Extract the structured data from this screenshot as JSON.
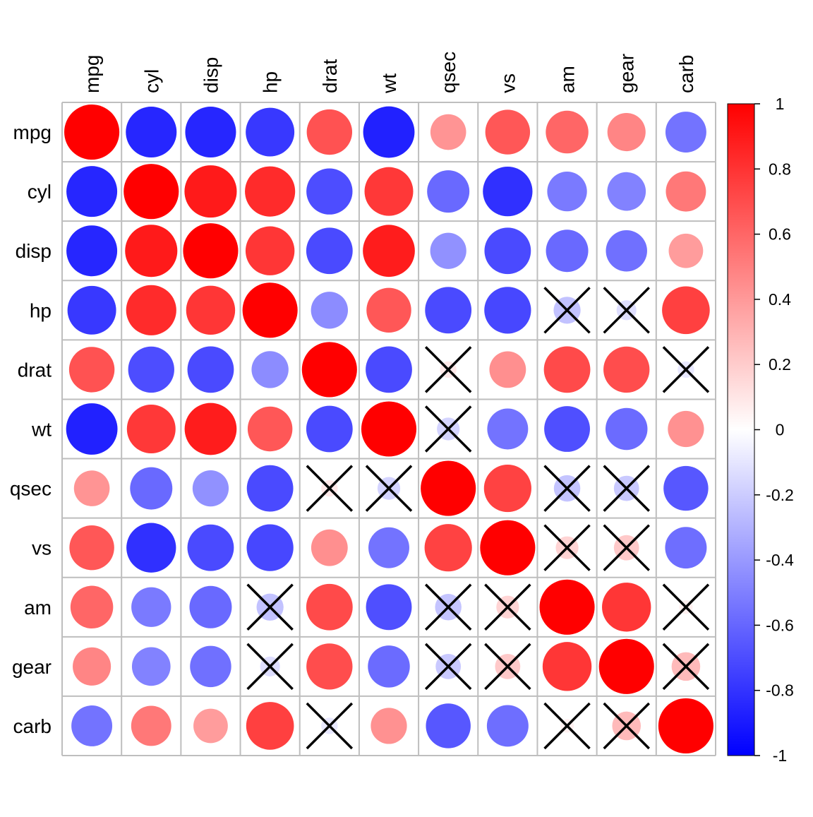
{
  "chart_data": {
    "type": "heatmap",
    "title": "",
    "variables": [
      "mpg",
      "cyl",
      "disp",
      "hp",
      "drat",
      "wt",
      "qsec",
      "vs",
      "am",
      "gear",
      "carb"
    ],
    "values": [
      [
        1.0,
        -0.85,
        -0.85,
        -0.78,
        0.68,
        -0.87,
        0.42,
        0.66,
        0.6,
        0.48,
        -0.55
      ],
      [
        -0.85,
        1.0,
        0.9,
        0.83,
        -0.7,
        0.78,
        -0.59,
        -0.81,
        -0.52,
        -0.49,
        0.53
      ],
      [
        -0.85,
        0.9,
        1.0,
        0.79,
        -0.71,
        0.89,
        -0.43,
        -0.71,
        -0.59,
        -0.56,
        0.39
      ],
      [
        -0.78,
        0.83,
        0.79,
        1.0,
        -0.45,
        0.66,
        -0.71,
        -0.72,
        -0.24,
        -0.13,
        0.75
      ],
      [
        0.68,
        -0.7,
        -0.71,
        -0.45,
        1.0,
        -0.71,
        0.09,
        0.44,
        0.71,
        0.7,
        -0.09
      ],
      [
        -0.87,
        0.78,
        0.89,
        0.66,
        -0.71,
        1.0,
        -0.17,
        -0.55,
        -0.69,
        -0.58,
        0.43
      ],
      [
        0.42,
        -0.59,
        -0.43,
        -0.71,
        0.09,
        -0.17,
        1.0,
        0.74,
        -0.23,
        -0.21,
        -0.66
      ],
      [
        0.66,
        -0.81,
        -0.71,
        -0.72,
        0.44,
        -0.55,
        0.74,
        1.0,
        0.17,
        0.21,
        -0.57
      ],
      [
        0.6,
        -0.52,
        -0.59,
        -0.24,
        0.71,
        -0.69,
        -0.23,
        0.17,
        1.0,
        0.79,
        0.06
      ],
      [
        0.48,
        -0.49,
        -0.56,
        -0.13,
        0.7,
        -0.58,
        -0.21,
        0.21,
        0.79,
        1.0,
        0.27
      ],
      [
        -0.55,
        0.53,
        0.39,
        0.75,
        -0.09,
        0.43,
        -0.66,
        -0.57,
        0.06,
        0.27,
        1.0
      ]
    ],
    "insignificant": [
      [
        false,
        false,
        false,
        false,
        false,
        false,
        false,
        false,
        false,
        false,
        false
      ],
      [
        false,
        false,
        false,
        false,
        false,
        false,
        false,
        false,
        false,
        false,
        false
      ],
      [
        false,
        false,
        false,
        false,
        false,
        false,
        false,
        false,
        false,
        false,
        false
      ],
      [
        false,
        false,
        false,
        false,
        false,
        false,
        false,
        false,
        true,
        true,
        false
      ],
      [
        false,
        false,
        false,
        false,
        false,
        false,
        true,
        false,
        false,
        false,
        true
      ],
      [
        false,
        false,
        false,
        false,
        false,
        false,
        true,
        false,
        false,
        false,
        false
      ],
      [
        false,
        false,
        false,
        false,
        true,
        true,
        false,
        false,
        true,
        true,
        false
      ],
      [
        false,
        false,
        false,
        false,
        false,
        false,
        false,
        false,
        true,
        true,
        false
      ],
      [
        false,
        false,
        false,
        true,
        false,
        false,
        true,
        true,
        false,
        false,
        true
      ],
      [
        false,
        false,
        false,
        true,
        false,
        false,
        true,
        true,
        false,
        false,
        true
      ],
      [
        false,
        false,
        false,
        false,
        true,
        false,
        false,
        false,
        true,
        true,
        false
      ]
    ],
    "color_scale": {
      "min": -1,
      "max": 1,
      "low_color": "#0000FF",
      "mid_color": "#FFFFFF",
      "high_color": "#FF0000",
      "ticks": [
        "1",
        "0.8",
        "0.6",
        "0.4",
        "0.2",
        "0",
        "-0.2",
        "-0.4",
        "-0.6",
        "-0.8",
        "-1"
      ]
    },
    "grid_color": "#BEBEBE",
    "legend_position": "right"
  }
}
